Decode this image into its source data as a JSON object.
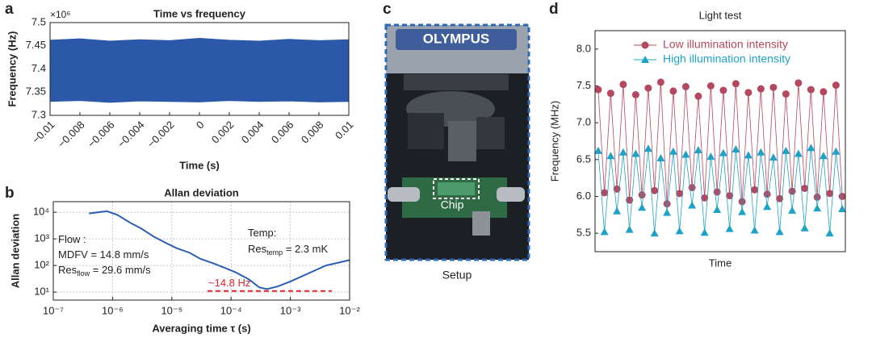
{
  "panel_labels": [
    "a",
    "b",
    "c",
    "d"
  ],
  "chart_data": [
    {
      "type": "band",
      "title": "Time vs frequency",
      "x_label": "Time (s)",
      "y_label": "Frequency (Hz)",
      "y_multiplier": "×10⁶",
      "color": "#2b58a8",
      "x": [
        -0.01,
        -0.008,
        -0.006,
        -0.004,
        -0.002,
        0,
        0.002,
        0.004,
        0.006,
        0.008,
        0.01
      ],
      "upper": [
        7.462,
        7.465,
        7.46,
        7.463,
        7.461,
        7.466,
        7.462,
        7.46,
        7.464,
        7.461,
        7.463
      ],
      "lower": [
        7.33,
        7.332,
        7.328,
        7.331,
        7.33,
        7.329,
        7.332,
        7.33,
        7.331,
        7.329,
        7.33
      ],
      "xlim": [
        -0.01,
        0.01
      ],
      "xticks": [
        {
          "value": -0.01,
          "label": "−0.01"
        },
        {
          "value": -0.008,
          "label": "−0.008"
        },
        {
          "value": -0.006,
          "label": "−0.006"
        },
        {
          "value": -0.004,
          "label": "−0.004"
        },
        {
          "value": -0.002,
          "label": "−0.002"
        },
        0,
        0.002,
        0.004,
        0.006,
        0.008,
        0.01
      ],
      "ylim": [
        7.3,
        7.5
      ],
      "yticks": [
        7.3,
        7.35,
        7.4,
        7.45,
        7.5
      ],
      "grid": false
    },
    {
      "type": "line",
      "title": "Allan deviation",
      "x_label": "Averaging time τ (s)",
      "y_label": "Allan deviation",
      "color": "#2b5fb4",
      "xscale": "log",
      "yscale": "log",
      "grid": true,
      "x": [
        4e-07,
        8e-07,
        1.2e-06,
        2e-06,
        3e-06,
        5e-06,
        8e-06,
        1.2e-05,
        2e-05,
        3e-05,
        5e-05,
        8e-05,
        0.00012,
        0.0002,
        0.0003,
        0.0004,
        0.0006,
        0.001,
        0.002,
        0.004,
        0.01
      ],
      "values": [
        9000,
        11000,
        8000,
        4000,
        2500,
        1200,
        700,
        450,
        300,
        180,
        120,
        80,
        55,
        30,
        15,
        13,
        16,
        25,
        50,
        100,
        160
      ],
      "xlim": [
        1e-07,
        0.01
      ],
      "xticks": [
        {
          "value": 1e-07,
          "label": "10⁻⁷"
        },
        {
          "value": 1e-06,
          "label": "10⁻⁶"
        },
        {
          "value": 1e-05,
          "label": "10⁻⁵"
        },
        {
          "value": 0.0001,
          "label": "10⁻⁴"
        },
        {
          "value": 0.001,
          "label": "10⁻³"
        },
        {
          "value": 0.01,
          "label": "10⁻²"
        }
      ],
      "ylim": [
        5,
        25000
      ],
      "yticks": [
        {
          "value": 10,
          "label": "10¹"
        },
        {
          "value": 100,
          "label": "10²"
        },
        {
          "value": 1000,
          "label": "10³"
        },
        {
          "value": 10000,
          "label": "10⁴"
        }
      ],
      "reference_line": {
        "y": 11,
        "x": [
          4e-05,
          0.005
        ],
        "color": "#e0242b"
      },
      "annotations": [
        {
          "text": "Flow :"
        },
        {
          "text": "MDFV = 14.8 mm/s"
        },
        {
          "text": "Res",
          "sub": "flow",
          "tail": " = 29.6 mm/s"
        },
        {
          "text": "Temp:"
        },
        {
          "text": "Res",
          "sub": "temp",
          "tail": " = 2.3 mK"
        },
        {
          "text": "~14.8 Hz",
          "color": "#e0242b"
        }
      ]
    },
    {
      "type": "line",
      "title": "Light test",
      "x_label": "Time",
      "y_label": "Frequency (MHz)",
      "legend": "upper center",
      "grid": false,
      "categories": [
        null,
        null,
        null,
        null,
        null,
        null,
        null,
        null,
        null,
        null,
        null,
        null,
        null,
        null,
        null,
        null,
        null,
        null,
        null,
        null,
        null,
        null,
        null,
        null,
        null,
        null,
        null,
        null,
        null,
        null,
        null,
        null,
        null,
        null,
        null,
        null,
        null,
        null,
        null,
        null
      ],
      "series": [
        {
          "name": "Low illumination intensity",
          "color": "#b5485f",
          "marker": "circle",
          "values": [
            7.45,
            6.05,
            7.4,
            6.1,
            7.52,
            5.95,
            7.38,
            6.02,
            7.47,
            6.08,
            7.55,
            5.9,
            7.43,
            6.04,
            7.49,
            6.12,
            7.36,
            5.98,
            7.5,
            6.06,
            7.44,
            6.01,
            7.53,
            5.93,
            7.41,
            6.09,
            7.46,
            6.03,
            7.48,
            5.97,
            7.39,
            6.07,
            7.54,
            6.11,
            7.45,
            5.99,
            7.42,
            6.04,
            7.51,
            6.0
          ]
        },
        {
          "name": "High illumination intensity",
          "color": "#1ea2c8",
          "marker": "triangle",
          "values": [
            6.62,
            5.52,
            6.55,
            5.8,
            6.6,
            5.55,
            6.58,
            5.85,
            6.65,
            5.5,
            6.52,
            5.78,
            6.61,
            5.53,
            6.57,
            5.88,
            6.63,
            5.51,
            6.54,
            5.82,
            6.59,
            5.56,
            6.64,
            5.79,
            6.56,
            5.54,
            6.6,
            5.86,
            6.53,
            5.52,
            6.62,
            5.81,
            6.58,
            5.57,
            6.66,
            5.84,
            6.55,
            5.5,
            6.61,
            5.83
          ]
        }
      ],
      "ylim": [
        5.25,
        8.25
      ],
      "yticks": [
        5.5,
        {
          "value": 6,
          "label": "6.0"
        },
        6.5,
        {
          "value": 7,
          "label": "7.0"
        },
        7.5,
        {
          "value": 8,
          "label": "8.0"
        }
      ]
    }
  ],
  "photo": {
    "brand": "OLYMPUS",
    "chip_label": "Chip",
    "caption": "Setup"
  }
}
